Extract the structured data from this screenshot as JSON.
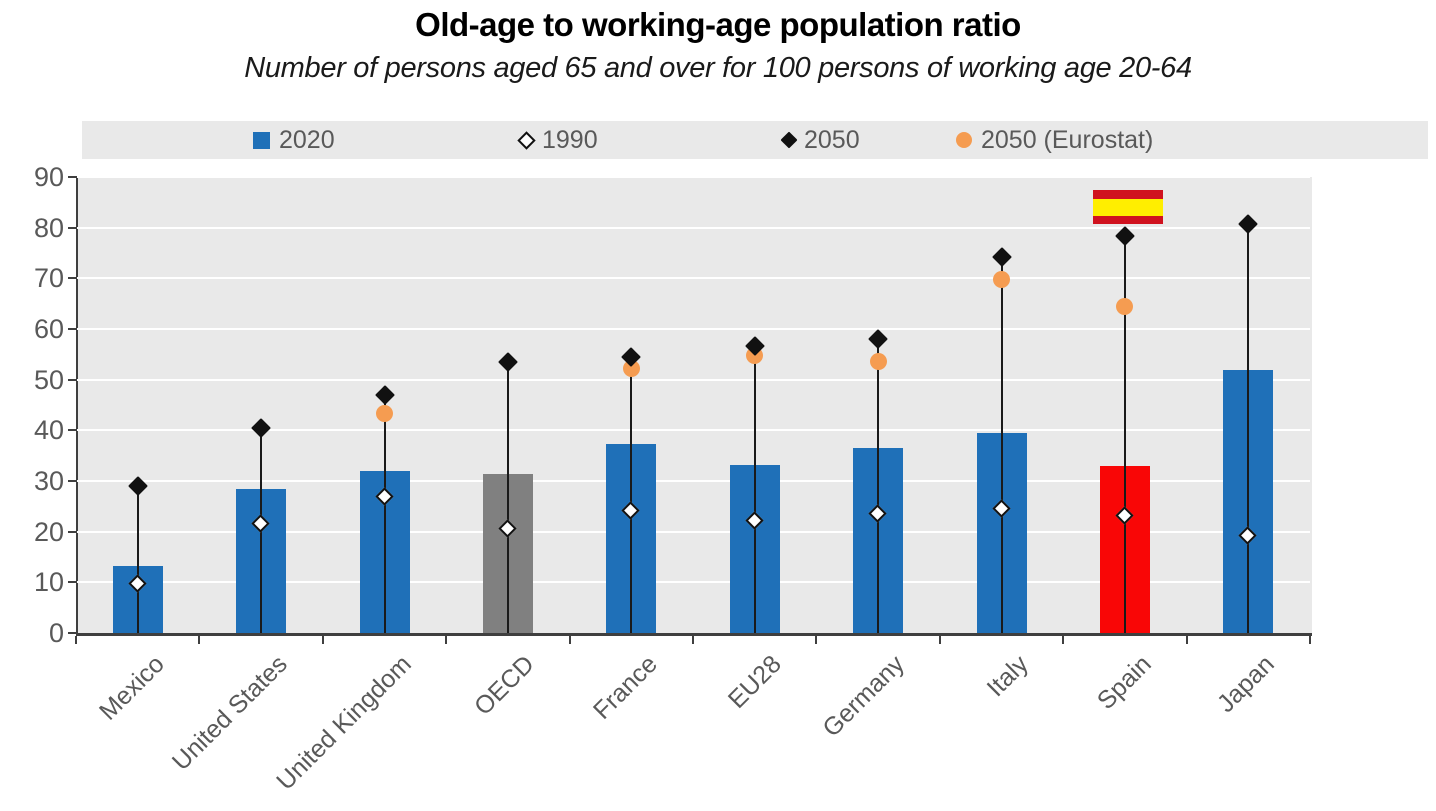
{
  "title": "Old-age to working-age population ratio",
  "subtitle": "Number of persons aged 65 and over for 100 persons of working age 20-64",
  "legend": {
    "items": [
      {
        "label": "2020",
        "marker": "blue-square"
      },
      {
        "label": "1990",
        "marker": "open-diamond"
      },
      {
        "label": "2050",
        "marker": "black-diamond"
      },
      {
        "label": "2050 (Eurostat)",
        "marker": "orange-circle"
      }
    ]
  },
  "colors": {
    "bar_blue": "#1F70B8",
    "bar_gray": "#808080",
    "bar_red": "#F90606",
    "eurostat_orange": "#F59C51",
    "marker_black": "#111111",
    "plot_background": "#E9E9E9",
    "legend_background": "#E9E9E9",
    "gridline": "#FFFFFF",
    "axis": "#3F3F3F",
    "text_gray": "#595959",
    "flag_red": "#D0121F",
    "flag_yellow": "#FFEE00"
  },
  "chart_data": {
    "type": "bar",
    "title": "Old-age to working-age population ratio",
    "subtitle": "Number of persons aged 65 and over for 100 persons of working age 20-64",
    "xlabel": "",
    "ylabel": "",
    "ylim": [
      0,
      90
    ],
    "ytick_step": 10,
    "ytick_labels": [
      "0",
      "10",
      "20",
      "30",
      "40",
      "50",
      "60",
      "70",
      "80",
      "90"
    ],
    "grid": true,
    "legend_position": "top",
    "categories": [
      "Mexico",
      "United States",
      "United Kingdom",
      "OECD",
      "France",
      "EU28",
      "Germany",
      "Italy",
      "Spain",
      "Japan"
    ],
    "bar_colors": [
      "#1F70B8",
      "#1F70B8",
      "#1F70B8",
      "#808080",
      "#1F70B8",
      "#1F70B8",
      "#1F70B8",
      "#1F70B8",
      "#F90606",
      "#1F70B8"
    ],
    "series": [
      {
        "name": "2020",
        "type": "bar",
        "values": [
          13.2,
          28.4,
          32.0,
          31.3,
          37.3,
          33.1,
          36.5,
          39.5,
          32.9,
          52.0
        ]
      },
      {
        "name": "1990",
        "type": "scatter",
        "marker": "open-diamond",
        "values": [
          9.6,
          21.6,
          26.9,
          20.5,
          24.0,
          22.1,
          23.5,
          24.4,
          23.0,
          19.2
        ]
      },
      {
        "name": "2050",
        "type": "scatter",
        "marker": "filled-diamond",
        "values": [
          29.0,
          40.4,
          47.0,
          53.4,
          54.5,
          56.7,
          58.1,
          74.3,
          78.4,
          80.7
        ]
      },
      {
        "name": "2050 (Eurostat)",
        "type": "scatter",
        "marker": "filled-circle",
        "values": [
          null,
          null,
          43.4,
          null,
          52.2,
          54.7,
          53.6,
          69.7,
          64.4,
          null
        ]
      }
    ],
    "annotations": [
      {
        "type": "flag",
        "country": "Spain",
        "description": "spain-flag above Spain stem"
      }
    ]
  }
}
